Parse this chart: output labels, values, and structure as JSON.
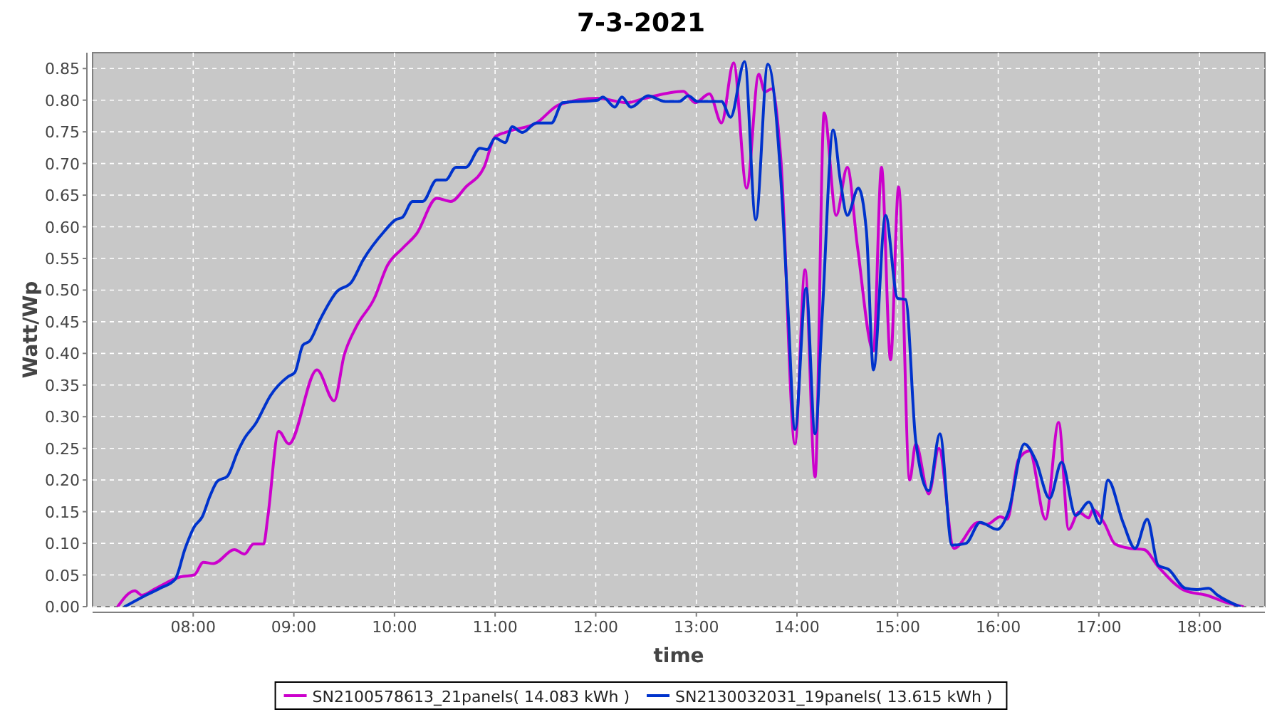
{
  "chart_data": {
    "type": "line",
    "title": "7-3-2021",
    "xlabel": "time",
    "ylabel": "Watt/Wp",
    "xlim": [
      7,
      18.65
    ],
    "ylim": [
      0,
      0.875
    ],
    "xticks": [
      {
        "value": 8,
        "label": "08:00"
      },
      {
        "value": 9,
        "label": "09:00"
      },
      {
        "value": 10,
        "label": "10:00"
      },
      {
        "value": 11,
        "label": "11:00"
      },
      {
        "value": 12,
        "label": "12:00"
      },
      {
        "value": 13,
        "label": "13:00"
      },
      {
        "value": 14,
        "label": "14:00"
      },
      {
        "value": 15,
        "label": "15:00"
      },
      {
        "value": 16,
        "label": "16:00"
      },
      {
        "value": 17,
        "label": "17:00"
      },
      {
        "value": 18,
        "label": "18:00"
      }
    ],
    "yticks": [
      {
        "value": 0,
        "label": "0.00"
      },
      {
        "value": 0.05,
        "label": "0.05"
      },
      {
        "value": 0.1,
        "label": "0.10"
      },
      {
        "value": 0.15,
        "label": "0.15"
      },
      {
        "value": 0.2,
        "label": "0.20"
      },
      {
        "value": 0.25,
        "label": "0.25"
      },
      {
        "value": 0.3,
        "label": "0.30"
      },
      {
        "value": 0.35,
        "label": "0.35"
      },
      {
        "value": 0.4,
        "label": "0.40"
      },
      {
        "value": 0.45,
        "label": "0.45"
      },
      {
        "value": 0.5,
        "label": "0.50"
      },
      {
        "value": 0.55,
        "label": "0.55"
      },
      {
        "value": 0.6,
        "label": "0.60"
      },
      {
        "value": 0.65,
        "label": "0.65"
      },
      {
        "value": 0.7,
        "label": "0.70"
      },
      {
        "value": 0.75,
        "label": "0.75"
      },
      {
        "value": 0.8,
        "label": "0.80"
      },
      {
        "value": 0.85,
        "label": "0.85"
      }
    ],
    "grid": true,
    "legend": "bottom",
    "marker": "none",
    "line_style": "solid",
    "series": [
      {
        "name": "SN2100578613_21panels( 14.083 kWh )",
        "color": "#cc00cc",
        "x": [
          7.25,
          7.42,
          7.49,
          7.63,
          7.87,
          8.01,
          8.1,
          8.2,
          8.41,
          8.51,
          8.6,
          8.7,
          8.74,
          8.85,
          8.95,
          9.23,
          9.4,
          9.5,
          9.62,
          9.8,
          9.93,
          10.08,
          10.22,
          10.42,
          10.56,
          10.71,
          10.89,
          11.0,
          11.14,
          11.41,
          11.64,
          12.02,
          12.31,
          12.49,
          12.87,
          12.99,
          13.13,
          13.25,
          13.37,
          13.5,
          13.62,
          13.68,
          13.75,
          13.84,
          13.98,
          14.08,
          14.18,
          14.27,
          14.39,
          14.5,
          14.6,
          14.76,
          14.84,
          14.93,
          15.01,
          15.12,
          15.18,
          15.31,
          15.41,
          15.56,
          15.8,
          15.89,
          16.02,
          16.09,
          16.2,
          16.31,
          16.47,
          16.6,
          16.7,
          16.8,
          16.9,
          16.94,
          17.05,
          17.16,
          17.31,
          17.45,
          17.59,
          17.86,
          18.07,
          18.26,
          18.43
        ],
        "values": [
          0,
          0.025,
          0.018,
          0.029,
          0.047,
          0.05,
          0.07,
          0.068,
          0.09,
          0.083,
          0.099,
          0.099,
          0.14,
          0.277,
          0.257,
          0.374,
          0.325,
          0.397,
          0.442,
          0.487,
          0.539,
          0.566,
          0.589,
          0.645,
          0.64,
          0.663,
          0.694,
          0.742,
          0.751,
          0.764,
          0.793,
          0.803,
          0.796,
          0.803,
          0.814,
          0.796,
          0.81,
          0.764,
          0.859,
          0.661,
          0.841,
          0.813,
          0.818,
          0.706,
          0.257,
          0.532,
          0.205,
          0.78,
          0.618,
          0.694,
          0.57,
          0.404,
          0.694,
          0.39,
          0.663,
          0.2,
          0.257,
          0.178,
          0.25,
          0.092,
          0.133,
          0.13,
          0.142,
          0.138,
          0.232,
          0.246,
          0.138,
          0.291,
          0.122,
          0.149,
          0.14,
          0.153,
          0.133,
          0.099,
          0.092,
          0.09,
          0.063,
          0.025,
          0.018,
          0.007,
          0
        ]
      },
      {
        "name": "SN2130032031_19panels( 13.615 kWh )",
        "color": "#0033cc",
        "x": [
          7.32,
          7.53,
          7.67,
          7.82,
          7.92,
          8.01,
          8.09,
          8.17,
          8.24,
          8.34,
          8.44,
          8.51,
          8.62,
          8.77,
          8.94,
          9.01,
          9.09,
          9.16,
          9.26,
          9.43,
          9.57,
          9.69,
          9.9,
          10.01,
          10.08,
          10.18,
          10.28,
          10.42,
          10.51,
          10.61,
          10.71,
          10.85,
          10.92,
          11.0,
          11.1,
          11.17,
          11.27,
          11.41,
          11.56,
          11.67,
          12.02,
          12.07,
          12.19,
          12.26,
          12.35,
          12.52,
          12.69,
          12.83,
          12.92,
          13.01,
          13.25,
          13.34,
          13.48,
          13.59,
          13.71,
          13.84,
          13.91,
          13.98,
          14.09,
          14.18,
          14.25,
          14.36,
          14.43,
          14.5,
          14.61,
          14.69,
          14.76,
          14.88,
          15.0,
          15.08,
          15.18,
          15.31,
          15.42,
          15.54,
          15.68,
          15.82,
          15.99,
          16.1,
          16.26,
          16.37,
          16.51,
          16.63,
          16.77,
          16.9,
          17.01,
          17.09,
          17.24,
          17.36,
          17.48,
          17.59,
          17.69,
          17.86,
          17.97,
          18.09,
          18.18,
          18.4
        ],
        "values": [
          0,
          0.018,
          0.029,
          0.043,
          0.092,
          0.126,
          0.142,
          0.176,
          0.198,
          0.206,
          0.244,
          0.266,
          0.289,
          0.334,
          0.363,
          0.37,
          0.413,
          0.42,
          0.453,
          0.498,
          0.512,
          0.548,
          0.593,
          0.611,
          0.615,
          0.64,
          0.64,
          0.674,
          0.674,
          0.694,
          0.694,
          0.724,
          0.722,
          0.74,
          0.733,
          0.758,
          0.749,
          0.764,
          0.764,
          0.796,
          0.8,
          0.805,
          0.789,
          0.805,
          0.789,
          0.807,
          0.798,
          0.798,
          0.807,
          0.798,
          0.798,
          0.773,
          0.861,
          0.611,
          0.857,
          0.674,
          0.471,
          0.28,
          0.503,
          0.273,
          0.458,
          0.753,
          0.674,
          0.618,
          0.661,
          0.593,
          0.374,
          0.618,
          0.487,
          0.485,
          0.262,
          0.183,
          0.273,
          0.097,
          0.1,
          0.133,
          0.122,
          0.149,
          0.257,
          0.232,
          0.171,
          0.228,
          0.144,
          0.165,
          0.131,
          0.2,
          0.133,
          0.092,
          0.138,
          0.065,
          0.059,
          0.029,
          0.027,
          0.029,
          0.018,
          0
        ]
      }
    ]
  }
}
